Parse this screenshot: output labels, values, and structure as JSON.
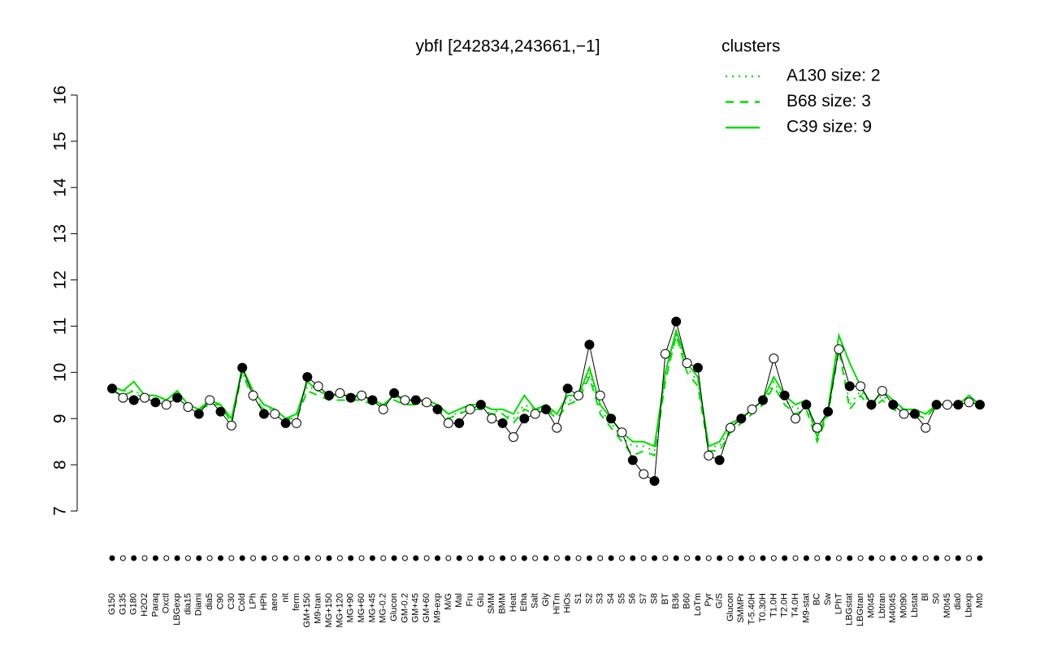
{
  "chart_data": {
    "type": "line",
    "title": "ybfI [242834,243661,−1]",
    "legend_title": "clusters",
    "legend_color": "#00dd00",
    "ylim": [
      7,
      16
    ],
    "yticks": [
      7,
      8,
      9,
      10,
      11,
      12,
      13,
      14,
      15,
      16
    ],
    "categories": [
      "G150",
      "G135",
      "G180",
      "H2O2",
      "Paraq",
      "Oxctl",
      "LBGexp",
      "dia15",
      "Diami",
      "dia5",
      "C90",
      "C30",
      "Cold",
      "LPh",
      "HPh",
      "aero",
      "nit",
      "ferm",
      "GM+150",
      "M9-tran",
      "MG+150",
      "MG+120",
      "MG+90",
      "MG+60",
      "MG+45",
      "MG-0.2",
      "Glucon",
      "GM-0.2",
      "GM+45",
      "GM+60",
      "M9-exp",
      "M/G",
      "Mal",
      "Fru",
      "Glu",
      "SMM",
      "BMM",
      "Heat",
      "Etha",
      "Salt",
      "Gly",
      "HiTm",
      "HiOs",
      "S1",
      "S2",
      "S3",
      "S4",
      "S5",
      "S6",
      "S7",
      "S8",
      "BT",
      "B36",
      "B60",
      "LoTm",
      "Pyr",
      "G/S",
      "Glucon",
      "SMMPr",
      "T-5.40H",
      "T0.30H",
      "T1.0H",
      "T2.0H",
      "T4.0H",
      "M9-stat",
      "BC",
      "Sw",
      "LPhT",
      "LBGstat",
      "LBGtran",
      "M0t45",
      "Lbtran",
      "M40t45",
      "M0t90",
      "Lbstat",
      "Bl",
      "S0",
      "M0t45",
      "dia0",
      "Lbexp",
      "Mt0"
    ],
    "values": [
      9.65,
      9.45,
      9.4,
      9.45,
      9.35,
      9.3,
      9.45,
      9.25,
      9.1,
      9.4,
      9.15,
      8.85,
      10.1,
      9.5,
      9.1,
      9.1,
      8.9,
      8.9,
      9.9,
      9.7,
      9.5,
      9.55,
      9.45,
      9.5,
      9.4,
      9.2,
      9.55,
      9.4,
      9.4,
      9.35,
      9.2,
      8.9,
      8.9,
      9.2,
      9.3,
      9.0,
      8.9,
      8.6,
      9.0,
      9.1,
      9.2,
      8.8,
      9.65,
      9.5,
      10.6,
      9.5,
      9.0,
      8.7,
      8.1,
      7.8,
      7.65,
      10.4,
      11.1,
      10.2,
      10.1,
      8.2,
      8.1,
      8.8,
      9.0,
      9.2,
      9.4,
      10.3,
      9.5,
      9.0,
      9.3,
      8.8,
      9.15,
      10.5,
      9.7,
      9.7,
      9.3,
      9.6,
      9.3,
      9.1,
      9.1,
      8.8,
      9.3,
      9.3,
      9.3,
      9.35,
      9.3
    ],
    "series": [
      {
        "name": "A130 size: 2",
        "color": "#00dd00",
        "dash": "dotted",
        "values": [
          9.7,
          9.6,
          9.6,
          9.5,
          9.5,
          9.4,
          9.6,
          9.3,
          9.2,
          9.4,
          9.3,
          9.0,
          10.0,
          9.5,
          9.2,
          9.2,
          9.0,
          9.1,
          9.7,
          9.6,
          9.5,
          9.5,
          9.4,
          9.4,
          9.4,
          9.3,
          9.5,
          9.4,
          9.4,
          9.4,
          9.3,
          9.1,
          9.1,
          9.3,
          9.3,
          9.2,
          9.1,
          9.0,
          9.3,
          9.2,
          9.2,
          9.1,
          9.4,
          9.4,
          10.0,
          9.2,
          8.9,
          8.6,
          8.4,
          8.4,
          8.3,
          9.9,
          10.8,
          10.1,
          9.8,
          8.4,
          8.4,
          8.8,
          9.0,
          9.2,
          9.3,
          9.8,
          9.4,
          9.2,
          9.3,
          8.6,
          9.1,
          10.6,
          9.3,
          9.6,
          9.3,
          9.5,
          9.3,
          9.2,
          9.2,
          9.1,
          9.3,
          9.3,
          9.3,
          9.4,
          9.3
        ]
      },
      {
        "name": "B68 size: 3",
        "color": "#00dd00",
        "dash": "dashed",
        "values": [
          9.6,
          9.5,
          9.6,
          9.4,
          9.4,
          9.3,
          9.5,
          9.3,
          9.2,
          9.3,
          9.3,
          8.9,
          10.0,
          9.4,
          9.2,
          9.1,
          9.0,
          9.0,
          9.6,
          9.5,
          9.4,
          9.4,
          9.4,
          9.4,
          9.3,
          9.3,
          9.4,
          9.3,
          9.3,
          9.3,
          9.2,
          9.0,
          9.1,
          9.2,
          9.2,
          9.1,
          9.1,
          8.9,
          9.2,
          9.1,
          9.2,
          9.0,
          9.3,
          9.4,
          9.9,
          9.1,
          8.8,
          8.5,
          8.2,
          8.3,
          8.2,
          9.8,
          10.8,
          10.0,
          9.7,
          8.3,
          8.3,
          8.7,
          8.9,
          9.1,
          9.3,
          9.7,
          9.3,
          9.1,
          9.2,
          8.5,
          9.1,
          10.5,
          9.2,
          9.5,
          9.2,
          9.4,
          9.2,
          9.1,
          9.1,
          9.0,
          9.3,
          9.3,
          9.3,
          9.4,
          9.3
        ]
      },
      {
        "name": "C39 size: 9",
        "color": "#00dd00",
        "dash": "solid",
        "values": [
          9.7,
          9.6,
          9.8,
          9.5,
          9.5,
          9.4,
          9.6,
          9.3,
          9.2,
          9.4,
          9.3,
          9.0,
          10.1,
          9.6,
          9.3,
          9.2,
          9.0,
          9.1,
          9.8,
          9.6,
          9.5,
          9.5,
          9.5,
          9.5,
          9.4,
          9.3,
          9.5,
          9.4,
          9.4,
          9.4,
          9.3,
          9.1,
          9.2,
          9.3,
          9.3,
          9.2,
          9.2,
          9.1,
          9.5,
          9.2,
          9.3,
          9.1,
          9.5,
          9.5,
          10.1,
          9.3,
          9.0,
          8.7,
          8.5,
          8.5,
          8.4,
          10.0,
          10.9,
          10.2,
          9.9,
          8.4,
          8.5,
          8.9,
          9.0,
          9.2,
          9.4,
          9.9,
          9.5,
          9.3,
          9.4,
          8.6,
          9.2,
          10.8,
          10.2,
          9.7,
          9.3,
          9.6,
          9.4,
          9.2,
          9.2,
          9.1,
          9.3,
          9.3,
          9.3,
          9.5,
          9.3
        ]
      }
    ]
  }
}
